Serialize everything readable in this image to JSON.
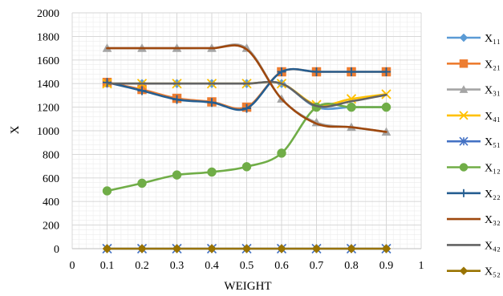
{
  "chart_data": {
    "type": "line",
    "xlabel": "WEIGHT",
    "ylabel": "X",
    "xlim": [
      0,
      1
    ],
    "ylim": [
      0,
      2000
    ],
    "x_ticks": [
      "0",
      "0.1",
      "0.2",
      "0.3",
      "0.4",
      "0.5",
      "0.6",
      "0.7",
      "0.8",
      "0.9",
      "1"
    ],
    "y_ticks": [
      "0",
      "200",
      "400",
      "600",
      "800",
      "1000",
      "1200",
      "1400",
      "1600",
      "1800",
      "2000"
    ],
    "grid": true,
    "legend_position": "right",
    "x": [
      0.1,
      0.2,
      0.3,
      0.4,
      0.5,
      0.6,
      0.7,
      0.8,
      0.9
    ],
    "series": [
      {
        "name": "X₁₁",
        "color": "#5B9BD5",
        "marker": "diamond",
        "values": [
          1400,
          1400,
          1400,
          1400,
          1400,
          1400,
          1200,
          1200,
          1200
        ]
      },
      {
        "name": "X₂₁",
        "color": "#ED7D31",
        "marker": "square",
        "values": [
          1410,
          1350,
          1275,
          1245,
          1200,
          1500,
          1500,
          1500,
          1500
        ]
      },
      {
        "name": "X₃₁",
        "color": "#A5A5A5",
        "marker": "triangle",
        "values": [
          1700,
          1700,
          1700,
          1700,
          1700,
          1270,
          1070,
          1030,
          990
        ]
      },
      {
        "name": "X₄₁",
        "color": "#FFC000",
        "marker": "x",
        "values": [
          1400,
          1400,
          1400,
          1400,
          1400,
          1400,
          1220,
          1270,
          1310
        ]
      },
      {
        "name": "X₅₁",
        "color": "#4472C4",
        "marker": "star",
        "values": [
          0,
          0,
          0,
          0,
          0,
          0,
          0,
          0,
          0
        ]
      },
      {
        "name": "X₁₂",
        "color": "#70AD47",
        "marker": "circle",
        "values": [
          490,
          555,
          625,
          650,
          695,
          810,
          1200,
          1200,
          1200
        ]
      },
      {
        "name": "X₂₂",
        "color": "#255E91",
        "marker": "plus",
        "values": [
          1410,
          1340,
          1265,
          1240,
          1190,
          1500,
          1500,
          1500,
          1500
        ]
      },
      {
        "name": "X₃₂",
        "color": "#9E480E",
        "marker": "none",
        "values": [
          1700,
          1700,
          1700,
          1700,
          1690,
          1270,
          1060,
          1030,
          990
        ]
      },
      {
        "name": "X₄₂",
        "color": "#636363",
        "marker": "none",
        "values": [
          1400,
          1400,
          1400,
          1400,
          1400,
          1400,
          1210,
          1250,
          1305
        ]
      },
      {
        "name": "X₅₂",
        "color": "#997300",
        "marker": "diamond",
        "values": [
          0,
          0,
          0,
          0,
          0,
          0,
          0,
          0,
          0
        ]
      }
    ]
  }
}
